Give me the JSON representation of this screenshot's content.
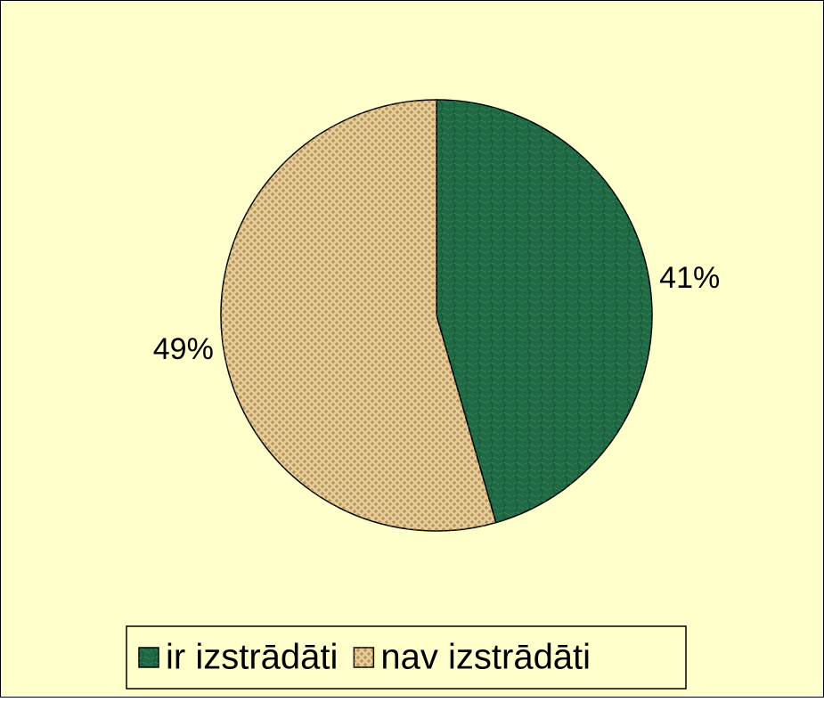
{
  "chart_data": {
    "type": "pie",
    "categories": [
      "ir izstrādāti",
      "nav izstrādāti"
    ],
    "values": [
      41,
      49
    ],
    "value_labels": [
      "41%",
      "49%"
    ],
    "colors": [
      "#1f6a44",
      "#e6cc98"
    ],
    "legend": "bottom"
  }
}
